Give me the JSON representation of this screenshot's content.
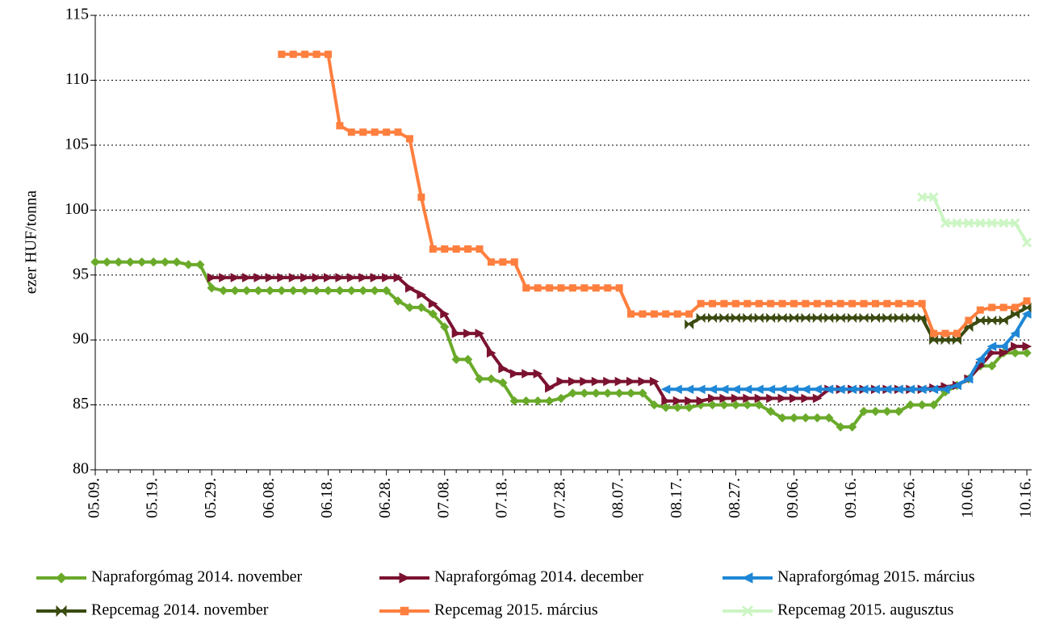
{
  "chart_data": {
    "type": "line",
    "y_label": "ezer HUF/tonna",
    "categories": [
      "05.09.",
      null,
      null,
      null,
      null,
      "05.19.",
      null,
      null,
      null,
      null,
      "05.29.",
      null,
      null,
      null,
      null,
      "06.08.",
      null,
      null,
      null,
      null,
      "06.18.",
      null,
      null,
      null,
      null,
      "06.28.",
      null,
      null,
      null,
      null,
      "07.08.",
      null,
      null,
      null,
      null,
      "07.18.",
      null,
      null,
      null,
      null,
      "07.28.",
      null,
      null,
      null,
      null,
      "08.07.",
      null,
      null,
      null,
      null,
      "08.17.",
      null,
      null,
      null,
      null,
      "08.27.",
      null,
      null,
      null,
      null,
      "09.06.",
      null,
      null,
      null,
      null,
      "09.16.",
      null,
      null,
      null,
      null,
      "09.26.",
      null,
      null,
      null,
      null,
      "10.06.",
      null,
      null,
      null,
      null,
      "10.16."
    ],
    "ylim": [
      80,
      115
    ],
    "yticks": [
      80,
      85,
      90,
      95,
      100,
      105,
      110,
      115
    ],
    "grid": true,
    "series": [
      {
        "name": "Napraforgómag 2014. november",
        "color": "#6aaa2a",
        "marker": "diamond",
        "values": [
          96,
          96,
          96,
          96,
          96,
          96,
          96,
          96,
          95.8,
          95.8,
          94,
          93.8,
          93.8,
          93.8,
          93.8,
          93.8,
          93.8,
          93.8,
          93.8,
          93.8,
          93.8,
          93.8,
          93.8,
          93.8,
          93.8,
          93.8,
          93,
          92.5,
          92.5,
          92,
          91,
          88.5,
          88.5,
          87,
          87,
          86.7,
          85.3,
          85.3,
          85.3,
          85.3,
          85.5,
          85.9,
          85.9,
          85.9,
          85.9,
          85.9,
          85.9,
          85.9,
          85,
          84.8,
          84.8,
          84.8,
          85,
          85,
          85,
          85,
          85,
          85,
          84.5,
          84,
          84,
          84,
          84,
          84,
          83.3,
          83.3,
          84.5,
          84.5,
          84.5,
          84.5,
          85,
          85,
          85,
          86,
          86.5,
          87,
          88,
          88,
          89,
          89,
          89
        ]
      },
      {
        "name": "Napraforgómag 2014. december",
        "color": "#7b1230",
        "marker": "triangle-right",
        "values": [
          null,
          null,
          null,
          null,
          null,
          null,
          null,
          null,
          null,
          null,
          94.8,
          94.8,
          94.8,
          94.8,
          94.8,
          94.8,
          94.8,
          94.8,
          94.8,
          94.8,
          94.8,
          94.8,
          94.8,
          94.8,
          94.8,
          94.8,
          94.8,
          94,
          93.5,
          92.8,
          92,
          90.5,
          90.5,
          90.5,
          89,
          87.8,
          87.4,
          87.4,
          87.4,
          86.3,
          86.8,
          86.8,
          86.8,
          86.8,
          86.8,
          86.8,
          86.8,
          86.8,
          86.8,
          85.3,
          85.3,
          85.3,
          85.3,
          85.5,
          85.5,
          85.5,
          85.5,
          85.5,
          85.5,
          85.5,
          85.5,
          85.5,
          85.5,
          86.2,
          86.2,
          86.2,
          86.2,
          86.2,
          86.2,
          86.2,
          86.2,
          86.2,
          86.3,
          86.4,
          86.5,
          87,
          88,
          89,
          89,
          89.5,
          89.5
        ]
      },
      {
        "name": "Napraforgómag 2015. március",
        "color": "#1f87d6",
        "marker": "triangle-left",
        "values": [
          null,
          null,
          null,
          null,
          null,
          null,
          null,
          null,
          null,
          null,
          null,
          null,
          null,
          null,
          null,
          null,
          null,
          null,
          null,
          null,
          null,
          null,
          null,
          null,
          null,
          null,
          null,
          null,
          null,
          null,
          null,
          null,
          null,
          null,
          null,
          null,
          null,
          null,
          null,
          null,
          null,
          null,
          null,
          null,
          null,
          null,
          null,
          null,
          null,
          86.2,
          86.2,
          86.2,
          86.2,
          86.2,
          86.2,
          86.2,
          86.2,
          86.2,
          86.2,
          86.2,
          86.2,
          86.2,
          86.2,
          86.2,
          86.2,
          86.2,
          86.2,
          86.2,
          86.2,
          86.2,
          86.2,
          86.2,
          86.2,
          86.2,
          86.5,
          87,
          88.5,
          89.5,
          89.5,
          90.5,
          92
        ]
      },
      {
        "name": "Repcemag 2014. november",
        "color": "#3a4a10",
        "marker": "bowtie",
        "values": [
          null,
          null,
          null,
          null,
          null,
          null,
          null,
          null,
          null,
          null,
          null,
          null,
          null,
          null,
          null,
          null,
          null,
          null,
          null,
          null,
          null,
          null,
          null,
          null,
          null,
          null,
          null,
          null,
          null,
          null,
          null,
          null,
          null,
          null,
          null,
          null,
          null,
          null,
          null,
          null,
          null,
          null,
          null,
          null,
          null,
          null,
          null,
          null,
          null,
          null,
          null,
          91.2,
          91.7,
          91.7,
          91.7,
          91.7,
          91.7,
          91.7,
          91.7,
          91.7,
          91.7,
          91.7,
          91.7,
          91.7,
          91.7,
          91.7,
          91.7,
          91.7,
          91.7,
          91.7,
          91.7,
          91.7,
          90,
          90,
          90,
          91,
          91.5,
          91.5,
          91.5,
          92,
          92.5
        ]
      },
      {
        "name": "Repcemag 2015. március",
        "color": "#ff7f3f",
        "marker": "square",
        "values": [
          null,
          null,
          null,
          null,
          null,
          null,
          null,
          null,
          null,
          null,
          null,
          null,
          null,
          null,
          null,
          null,
          112,
          112,
          112,
          112,
          112,
          106.5,
          106,
          106,
          106,
          106,
          106,
          105.5,
          101,
          97,
          97,
          97,
          97,
          97,
          96,
          96,
          96,
          94,
          94,
          94,
          94,
          94,
          94,
          94,
          94,
          94,
          92,
          92,
          92,
          92,
          92,
          92,
          92.8,
          92.8,
          92.8,
          92.8,
          92.8,
          92.8,
          92.8,
          92.8,
          92.8,
          92.8,
          92.8,
          92.8,
          92.8,
          92.8,
          92.8,
          92.8,
          92.8,
          92.8,
          92.8,
          92.8,
          90.5,
          90.5,
          90.5,
          91.5,
          92.3,
          92.5,
          92.5,
          92.5,
          93
        ]
      },
      {
        "name": "Repcemag 2015. augusztus",
        "color": "#ccf5c4",
        "marker": "cross",
        "values": [
          null,
          null,
          null,
          null,
          null,
          null,
          null,
          null,
          null,
          null,
          null,
          null,
          null,
          null,
          null,
          null,
          null,
          null,
          null,
          null,
          null,
          null,
          null,
          null,
          null,
          null,
          null,
          null,
          null,
          null,
          null,
          null,
          null,
          null,
          null,
          null,
          null,
          null,
          null,
          null,
          null,
          null,
          null,
          null,
          null,
          null,
          null,
          null,
          null,
          null,
          null,
          null,
          null,
          null,
          null,
          null,
          null,
          null,
          null,
          null,
          null,
          null,
          null,
          null,
          null,
          null,
          null,
          null,
          null,
          null,
          null,
          101,
          101,
          99,
          99,
          99,
          99,
          99,
          99,
          99,
          97.5
        ]
      }
    ]
  }
}
